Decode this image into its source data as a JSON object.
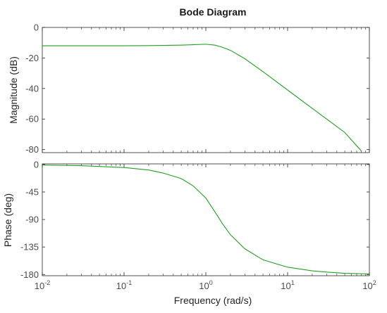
{
  "chart_data": {
    "type": "line",
    "title": "Bode Diagram",
    "xlabel": "Frequency  (rad/s)",
    "xscale": "log",
    "xlim": [
      0.01,
      100
    ],
    "x_tick_labels": [
      {
        "base": "10",
        "exp": "-2"
      },
      {
        "base": "10",
        "exp": "-1"
      },
      {
        "base": "10",
        "exp": "0"
      },
      {
        "base": "10",
        "exp": "1"
      },
      {
        "base": "10",
        "exp": "2"
      }
    ],
    "line_color": "#22a022",
    "grid": false,
    "panels": [
      {
        "name": "magnitude",
        "ylabel": "Magnitude (dB)",
        "ylim": [
          -82,
          0
        ],
        "yticks": [
          0,
          -20,
          -40,
          -60,
          -80
        ],
        "ytick_labels": [
          "0",
          "-20",
          "-40",
          "-60",
          "-80"
        ],
        "x": [
          0.01,
          0.03,
          0.1,
          0.2,
          0.3,
          0.5,
          0.7,
          1.0,
          1.3,
          1.6,
          2,
          3,
          5,
          10,
          20,
          30,
          50,
          80
        ],
        "y": [
          -12.0,
          -12.0,
          -12.0,
          -11.9,
          -11.8,
          -11.6,
          -11.3,
          -11.0,
          -11.6,
          -13.0,
          -15.0,
          -20.5,
          -29.0,
          -41.0,
          -53.0,
          -60.0,
          -68.8,
          -81.0
        ]
      },
      {
        "name": "phase",
        "ylabel": "Phase (deg)",
        "ylim": [
          -182,
          1
        ],
        "yticks": [
          0,
          -45,
          -90,
          -135,
          -180
        ],
        "ytick_labels": [
          "0",
          "-45",
          "-90",
          "-135",
          "-180"
        ],
        "x": [
          0.01,
          0.03,
          0.1,
          0.2,
          0.3,
          0.5,
          0.7,
          1.0,
          1.3,
          1.6,
          2,
          3,
          5,
          10,
          20,
          30,
          50,
          100
        ],
        "y": [
          -1,
          -2,
          -5,
          -9,
          -14,
          -23,
          -35,
          -55,
          -78,
          -97,
          -115,
          -138,
          -156,
          -168,
          -174,
          -176,
          -178,
          -179
        ]
      }
    ]
  }
}
